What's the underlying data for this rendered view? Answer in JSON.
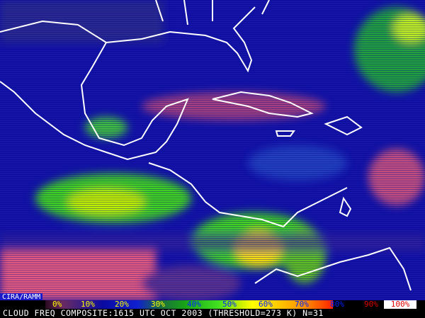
{
  "credit": "CIRA/RAMM",
  "caption": "CLOUD FREQ COMPOSITE:1615 UTC OCT 2003 (THRESHOLD=273 K) N=31",
  "legend": {
    "ticks": [
      "0%",
      "10%",
      "20%",
      "30%",
      "40%",
      "50%",
      "60%",
      "70%",
      "80%",
      "90%",
      "100%"
    ],
    "colors": {
      "low": "#e05a80",
      "background": "#1010a0",
      "mid": "#40e020",
      "high": "#ffff00",
      "coast": "#ffffff"
    }
  }
}
